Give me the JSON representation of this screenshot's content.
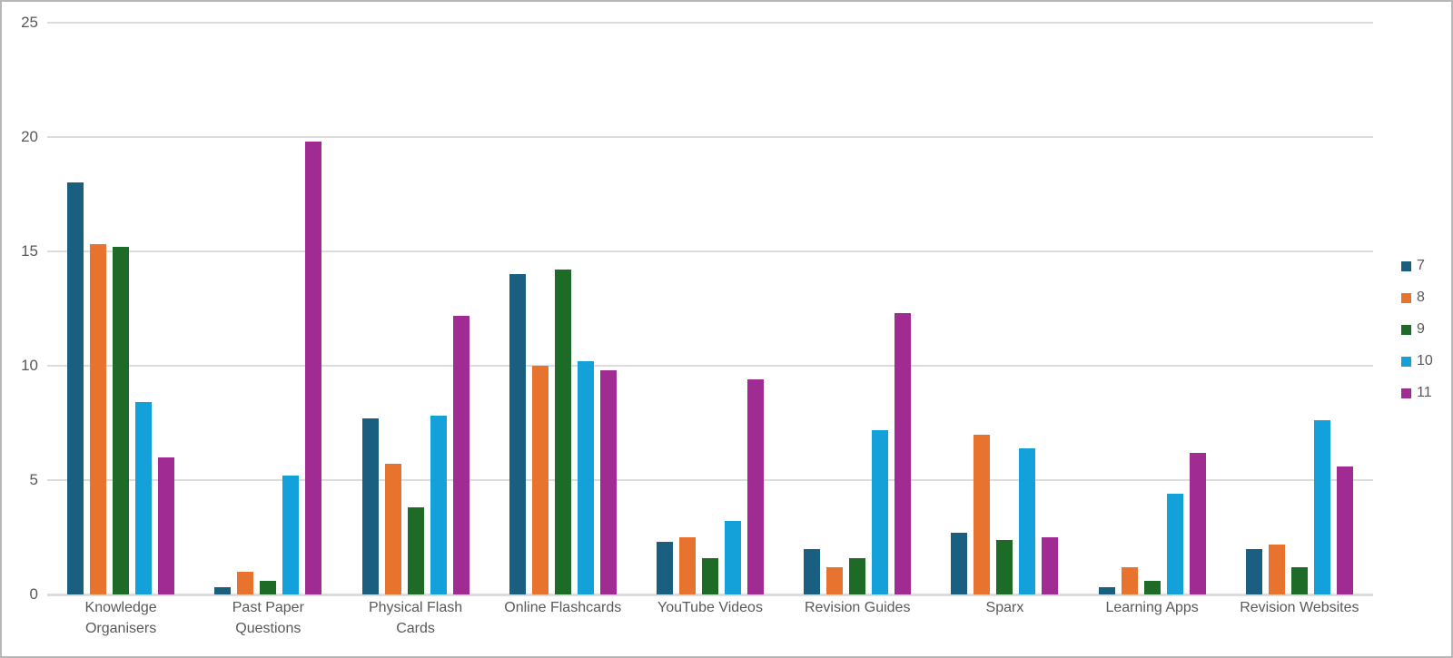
{
  "chart_data": {
    "type": "bar",
    "title": "",
    "categories": [
      "Knowledge Organisers",
      "Past Paper Questions",
      "Physical Flash Cards",
      "Online Flashcards",
      "YouTube Videos",
      "Revision Guides",
      "Sparx",
      "Learning Apps",
      "Revision Websites"
    ],
    "series": [
      {
        "name": "7",
        "color": "#1a5f80",
        "values": [
          18.0,
          0.3,
          7.7,
          14.0,
          2.3,
          2.0,
          2.7,
          0.3,
          2.0
        ]
      },
      {
        "name": "8",
        "color": "#e8732e",
        "values": [
          15.3,
          1.0,
          5.7,
          10.0,
          2.5,
          1.2,
          7.0,
          1.2,
          2.2
        ]
      },
      {
        "name": "9",
        "color": "#1e6b28",
        "values": [
          15.2,
          0.6,
          3.8,
          14.2,
          1.6,
          1.6,
          2.4,
          0.6,
          1.2
        ]
      },
      {
        "name": "10",
        "color": "#14a0d9",
        "values": [
          8.4,
          5.2,
          7.8,
          10.2,
          3.2,
          7.2,
          6.4,
          4.4,
          7.6
        ]
      },
      {
        "name": "11",
        "color": "#a02c93",
        "values": [
          6.0,
          19.8,
          12.2,
          9.8,
          9.4,
          12.3,
          2.5,
          6.2,
          5.6
        ]
      }
    ],
    "y_axis": {
      "min": 0,
      "max": 25,
      "tick_step": 5,
      "ticks": [
        "0",
        "5",
        "10",
        "15",
        "20",
        "25"
      ]
    },
    "legend_position": "right",
    "legend_entries": [
      "7",
      "8",
      "9",
      "10",
      "11"
    ],
    "grid": true,
    "colors": {
      "gridline": "#dcdcdc",
      "axis_text": "#595959",
      "background": "#ffffff",
      "border": "#b7b7b7"
    }
  }
}
